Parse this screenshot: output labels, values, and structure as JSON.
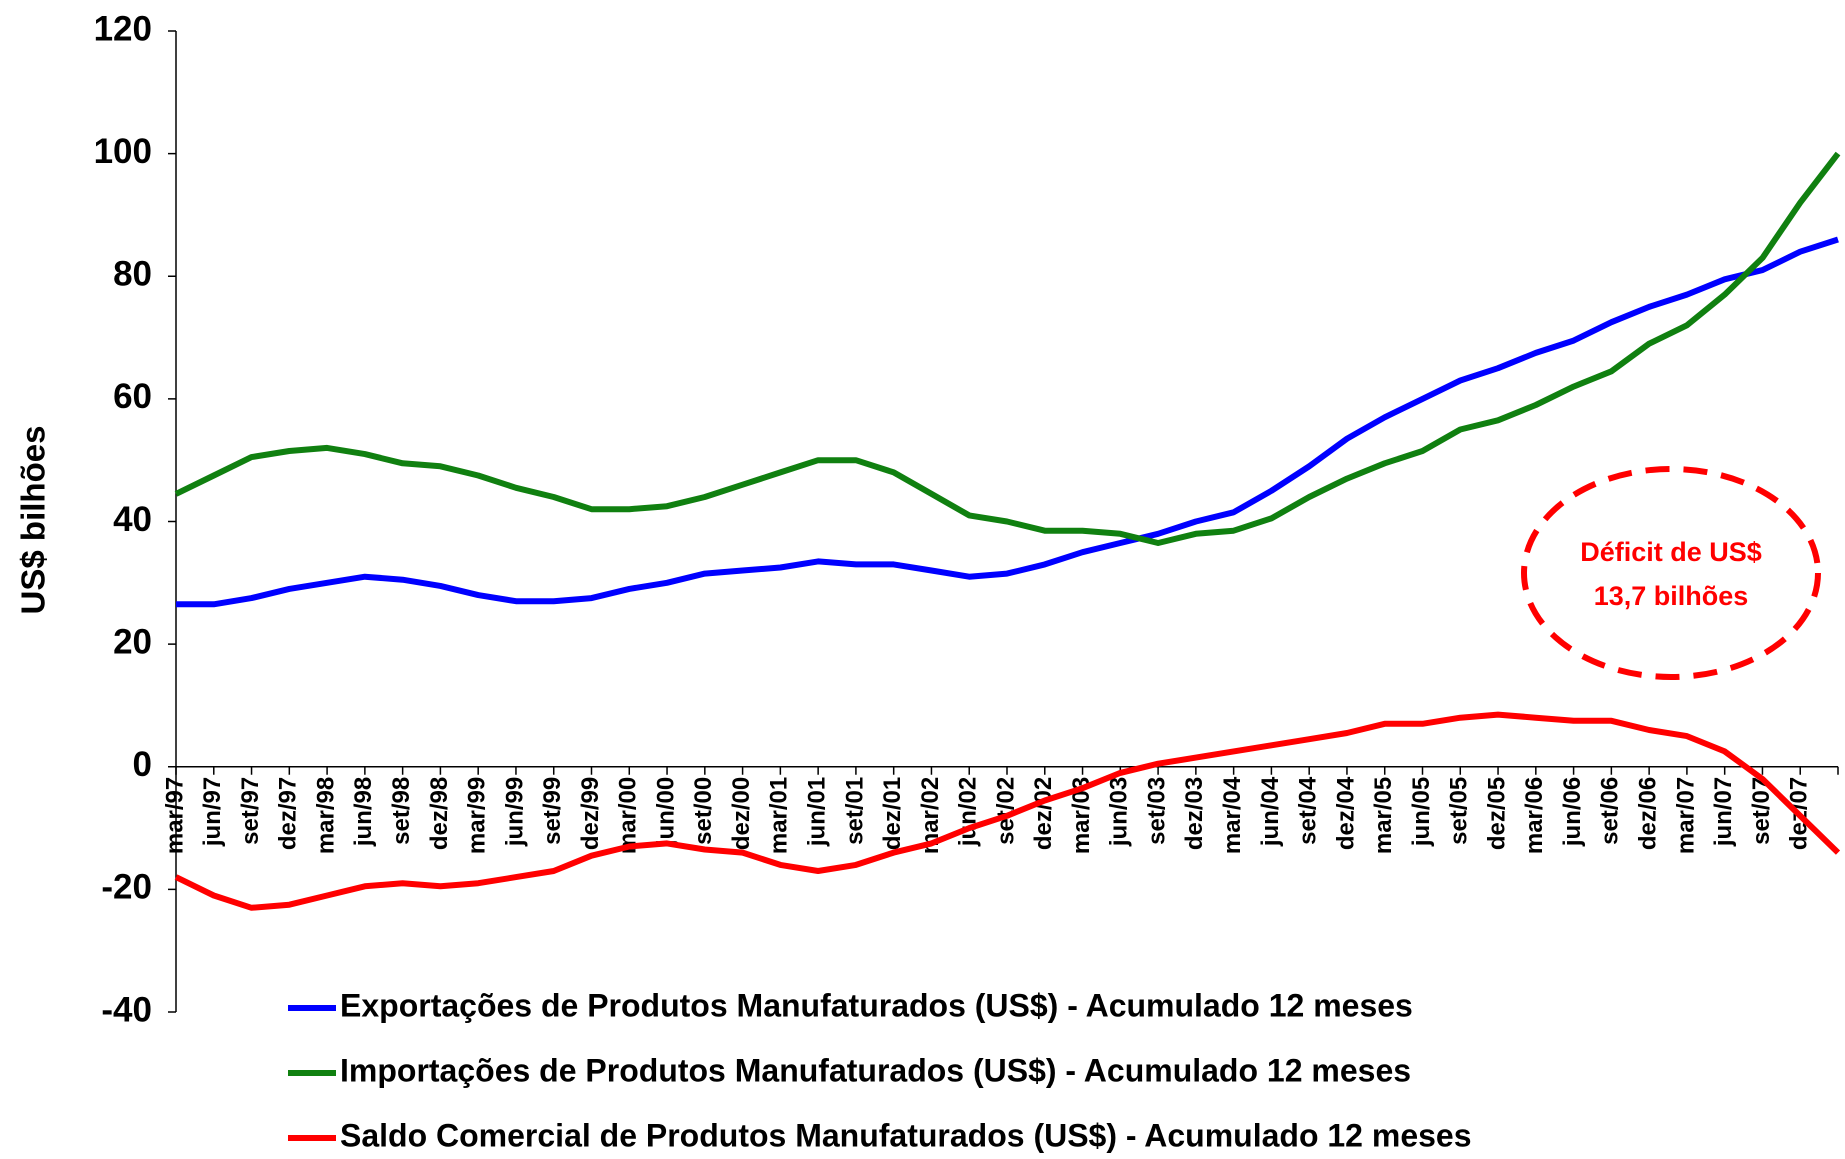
{
  "chart_data": {
    "type": "line",
    "y_label": "US$ bilhões",
    "categories": [
      "mar/97",
      "jun/97",
      "set/97",
      "dez/97",
      "mar/98",
      "jun/98",
      "set/98",
      "dez/98",
      "mar/99",
      "jun/99",
      "set/99",
      "dez/99",
      "mar/00",
      "jun/00",
      "set/00",
      "dez/00",
      "mar/01",
      "jun/01",
      "set/01",
      "dez/01",
      "mar/02",
      "jun/02",
      "set/02",
      "dez/02",
      "mar/03",
      "jun/03",
      "set/03",
      "dez/03",
      "mar/04",
      "jun/04",
      "set/04",
      "dez/04",
      "mar/05",
      "jun/05",
      "set/05",
      "dez/05",
      "mar/06",
      "jun/06",
      "set/06",
      "dez/06",
      "mar/07",
      "jun/07",
      "set/07",
      "dez/07",
      null
    ],
    "series": [
      {
        "name": "Exportações de Produtos Manufaturados (US$) - Acumulado 12 meses",
        "color": "#0000ff",
        "values": [
          26.5,
          26.5,
          27.5,
          29,
          30,
          31,
          30.5,
          29.5,
          28,
          27,
          27,
          27.5,
          29,
          30,
          31.5,
          32,
          32.5,
          33.5,
          33,
          33,
          32,
          31,
          31.5,
          33,
          35,
          36.5,
          38,
          40,
          41.5,
          45,
          49,
          53.5,
          57,
          60,
          63,
          65,
          67.5,
          69.5,
          72.5,
          75,
          77,
          79.5,
          81,
          84,
          86
        ]
      },
      {
        "name": "Importações de Produtos Manufaturados (US$) - Acumulado 12 meses",
        "color": "#108010",
        "values": [
          44.5,
          47.5,
          50.5,
          51.5,
          52,
          51,
          49.5,
          49,
          47.5,
          45.5,
          44,
          42,
          42,
          42.5,
          44,
          46,
          48,
          50,
          50,
          48,
          44.5,
          41,
          40,
          38.5,
          38.5,
          38,
          36.5,
          38,
          38.5,
          40.5,
          44,
          47,
          49.5,
          51.5,
          55,
          56.5,
          59,
          62,
          64.5,
          69,
          72,
          77,
          83,
          92,
          100
        ]
      },
      {
        "name": "Saldo Comercial de Produtos Manufaturados (US$) - Acumulado 12 meses",
        "color": "#ff0000",
        "values": [
          -18,
          -21,
          -23,
          -22.5,
          -21,
          -19.5,
          -19,
          -19.5,
          -19,
          -18,
          -17,
          -14.5,
          -13,
          -12.5,
          -13.5,
          -14,
          -16,
          -17,
          -16,
          -14,
          -12.5,
          -10,
          -8,
          -5.5,
          -3.5,
          -1,
          0.5,
          1.5,
          2.5,
          3.5,
          4.5,
          5.5,
          7,
          7,
          8,
          8.5,
          8,
          7.5,
          7.5,
          6,
          5,
          2.5,
          -2,
          -8,
          -14
        ]
      }
    ],
    "annotation": [
      "Déficit de US$",
      "13,7 bilhões"
    ],
    "ylim": [
      -40,
      120
    ],
    "yticks": [
      -40,
      -20,
      0,
      20,
      40,
      60,
      80,
      100,
      120
    ]
  }
}
